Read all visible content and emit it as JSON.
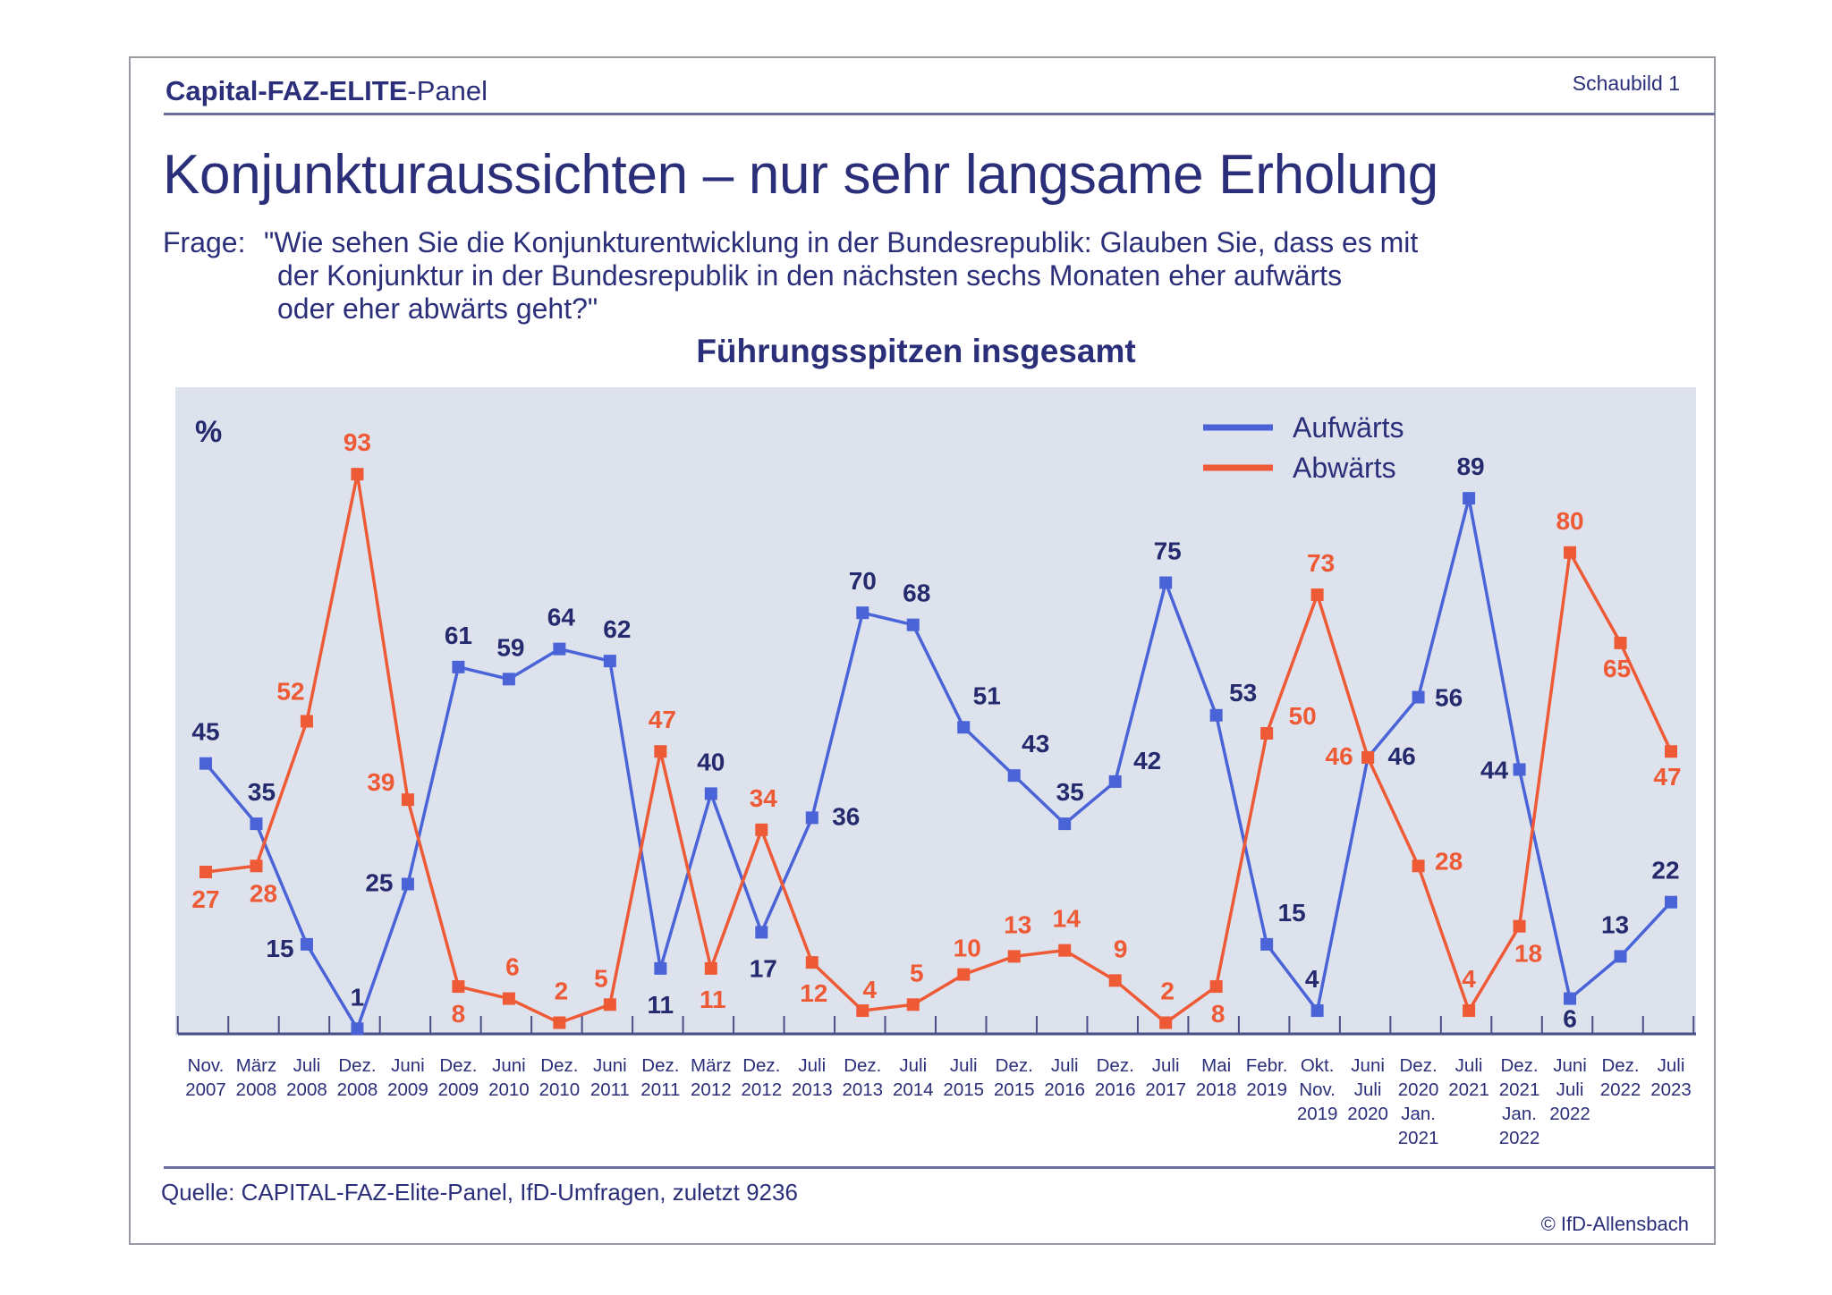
{
  "header": {
    "brand_part1": "Capital-FAZ-ELITE",
    "brand_part2": "-Panel",
    "chart_number": "Schaubild  1"
  },
  "title": "Konjunkturaussichten – nur sehr langsame Erholung",
  "question": {
    "label": "Frage:",
    "lines": [
      "\"Wie sehen Sie die Konjunkturentwicklung in der Bundesrepublik: Glauben Sie, dass es mit",
      "der Konjunktur in der Bundesrepublik in den nächsten sechs Monaten eher aufwärts",
      "oder eher abwärts geht?\""
    ]
  },
  "footer": {
    "source": "Quelle: CAPITAL-FAZ-Elite-Panel, IfD-Umfragen, zuletzt 9236",
    "copyright": "© IfD-Allensbach"
  },
  "colors": {
    "aufwaerts": "#4a64d8",
    "abwaerts": "#ee5a36",
    "label_dark": "#252a6e",
    "plot_bg": "#dde2ec",
    "text": "#2b2f7a"
  },
  "chart_data": {
    "type": "line",
    "title": "Führungsspitzen insgesamt",
    "ylabel": "%",
    "xlabel": "",
    "ylim": [
      0,
      100
    ],
    "grid": false,
    "legend_position": "top-right",
    "categories": [
      [
        "Nov.",
        "2007"
      ],
      [
        "März",
        "2008"
      ],
      [
        "Juli",
        "2008"
      ],
      [
        "Dez.",
        "2008"
      ],
      [
        "Juni",
        "2009"
      ],
      [
        "Dez.",
        "2009"
      ],
      [
        "Juni",
        "2010"
      ],
      [
        "Dez.",
        "2010"
      ],
      [
        "Juni",
        "2011"
      ],
      [
        "Dez.",
        "2011"
      ],
      [
        "März",
        "2012"
      ],
      [
        "Dez.",
        "2012"
      ],
      [
        "Juli",
        "2013"
      ],
      [
        "Dez.",
        "2013"
      ],
      [
        "Juli",
        "2014"
      ],
      [
        "Juli",
        "2015"
      ],
      [
        "Dez.",
        "2015"
      ],
      [
        "Juli",
        "2016"
      ],
      [
        "Dez.",
        "2016"
      ],
      [
        "Juli",
        "2017"
      ],
      [
        "Mai",
        "2018"
      ],
      [
        "Febr.",
        "2019"
      ],
      [
        "Okt.",
        "Nov.",
        "2019"
      ],
      [
        "Juni",
        "Juli",
        "2020"
      ],
      [
        "Dez.",
        "2020",
        "Jan.",
        "2021"
      ],
      [
        "Juli",
        "2021"
      ],
      [
        "Dez.",
        "2021",
        "Jan.",
        "2022"
      ],
      [
        "Juni",
        "Juli",
        "2022"
      ],
      [
        "Dez.",
        "2022"
      ],
      [
        "Juli",
        "2023"
      ]
    ],
    "series": [
      {
        "name": "Aufwärts",
        "values": [
          45,
          35,
          15,
          1,
          25,
          61,
          59,
          64,
          62,
          11,
          40,
          17,
          36,
          70,
          68,
          51,
          43,
          35,
          42,
          75,
          53,
          15,
          4,
          46,
          56,
          89,
          44,
          6,
          13,
          22
        ]
      },
      {
        "name": "Abwärts",
        "values": [
          27,
          28,
          52,
          93,
          39,
          8,
          6,
          2,
          5,
          47,
          11,
          34,
          12,
          4,
          5,
          10,
          13,
          14,
          9,
          2,
          8,
          50,
          73,
          46,
          28,
          4,
          18,
          80,
          65,
          47
        ]
      }
    ]
  }
}
